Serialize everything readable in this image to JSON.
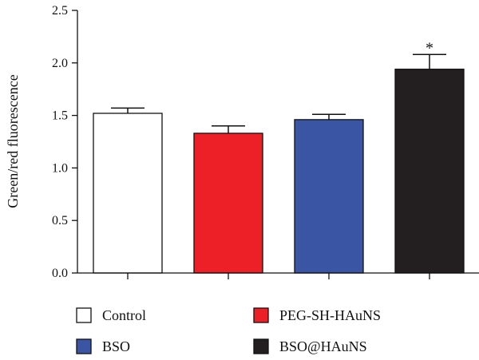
{
  "chart_data": {
    "type": "bar",
    "categories": [
      "Control",
      "PEG-SH-HAuNS",
      "BSO",
      "BSO@HAuNS"
    ],
    "values": [
      1.52,
      1.33,
      1.46,
      1.94
    ],
    "errors": [
      0.05,
      0.07,
      0.05,
      0.14
    ],
    "colors": [
      "#ffffff",
      "#ee2027",
      "#3b55a5",
      "#231f20"
    ],
    "ylabel": "Green/red fluorescence",
    "ylim": [
      0,
      2.5
    ],
    "yticks": [
      "0.0",
      "0.5",
      "1.0",
      "1.5",
      "2.0",
      "2.5"
    ],
    "annotations": [
      {
        "category": "BSO@HAuNS",
        "text": "*"
      }
    ],
    "legend": {
      "placement": "bottom",
      "entries": [
        "Control",
        "PEG-SH-HAuNS",
        "BSO",
        "BSO@HAuNS"
      ]
    },
    "grid": false
  }
}
